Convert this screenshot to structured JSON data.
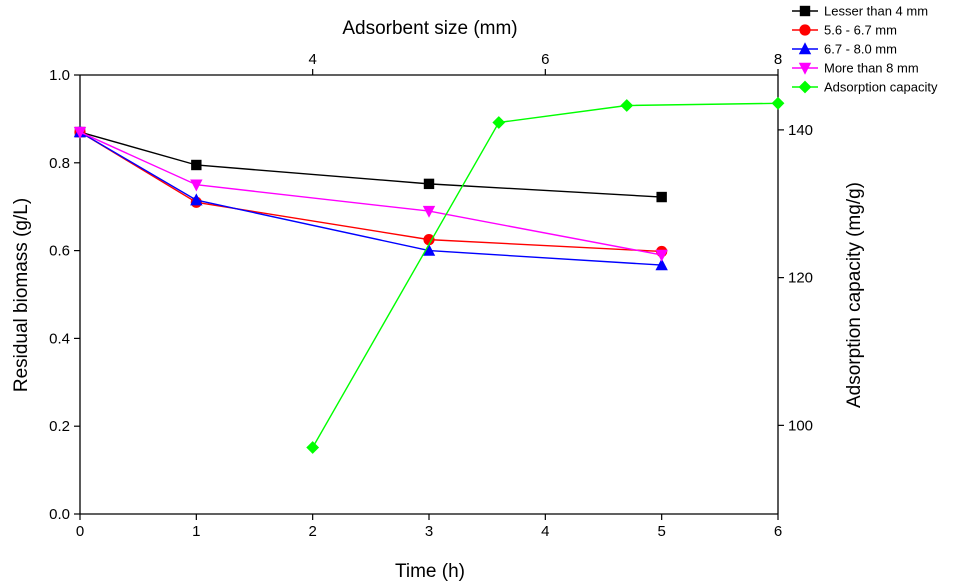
{
  "chart_data": {
    "type": "line",
    "xlabel": "Time (h)",
    "ylabel": "Residual biomass (g/L)",
    "x2label": "Adsorbent size (mm)",
    "y2label": "Adsorption capacity (mg/g)",
    "xlim": [
      0,
      6
    ],
    "ylim": [
      0,
      1
    ],
    "x2lim": [
      2,
      8
    ],
    "y2lim": [
      88,
      147.43
    ],
    "x_ticks": [
      "0",
      "1",
      "2",
      "3",
      "4",
      "5",
      "6"
    ],
    "y_ticks": [
      "0.0",
      "0.2",
      "0.4",
      "0.6",
      "0.8",
      "1.0"
    ],
    "x2_ticks": [
      "4",
      "6",
      "8"
    ],
    "y2_ticks": [
      "100",
      "120",
      "140"
    ],
    "legend_position": "top-right, outside plot",
    "series": [
      {
        "name": "Lesser than 4 mm",
        "axis": "primary",
        "color": "#000000",
        "marker": "square",
        "x": [
          0,
          1,
          3,
          5
        ],
        "y": [
          0.87,
          0.795,
          0.752,
          0.722
        ]
      },
      {
        "name": "5.6 - 6.7 mm",
        "axis": "primary",
        "color": "#ff0000",
        "marker": "circle",
        "x": [
          0,
          1,
          3,
          5
        ],
        "y": [
          0.87,
          0.71,
          0.625,
          0.598
        ]
      },
      {
        "name": "6.7 - 8.0 mm",
        "axis": "primary",
        "color": "#0000ff",
        "marker": "triangle-up",
        "x": [
          0,
          1,
          3,
          5
        ],
        "y": [
          0.87,
          0.715,
          0.6,
          0.567
        ]
      },
      {
        "name": "More than 8 mm",
        "axis": "primary",
        "color": "#ff00ff",
        "marker": "triangle-down",
        "x": [
          0,
          1,
          3,
          5
        ],
        "y": [
          0.87,
          0.75,
          0.69,
          0.59
        ]
      },
      {
        "name": "Adsorption capacity",
        "axis": "secondary",
        "color": "#00ff00",
        "marker": "diamond",
        "x": [
          4,
          5.6,
          6.7,
          8
        ],
        "y": [
          97,
          141,
          143.3,
          143.6
        ]
      }
    ]
  }
}
